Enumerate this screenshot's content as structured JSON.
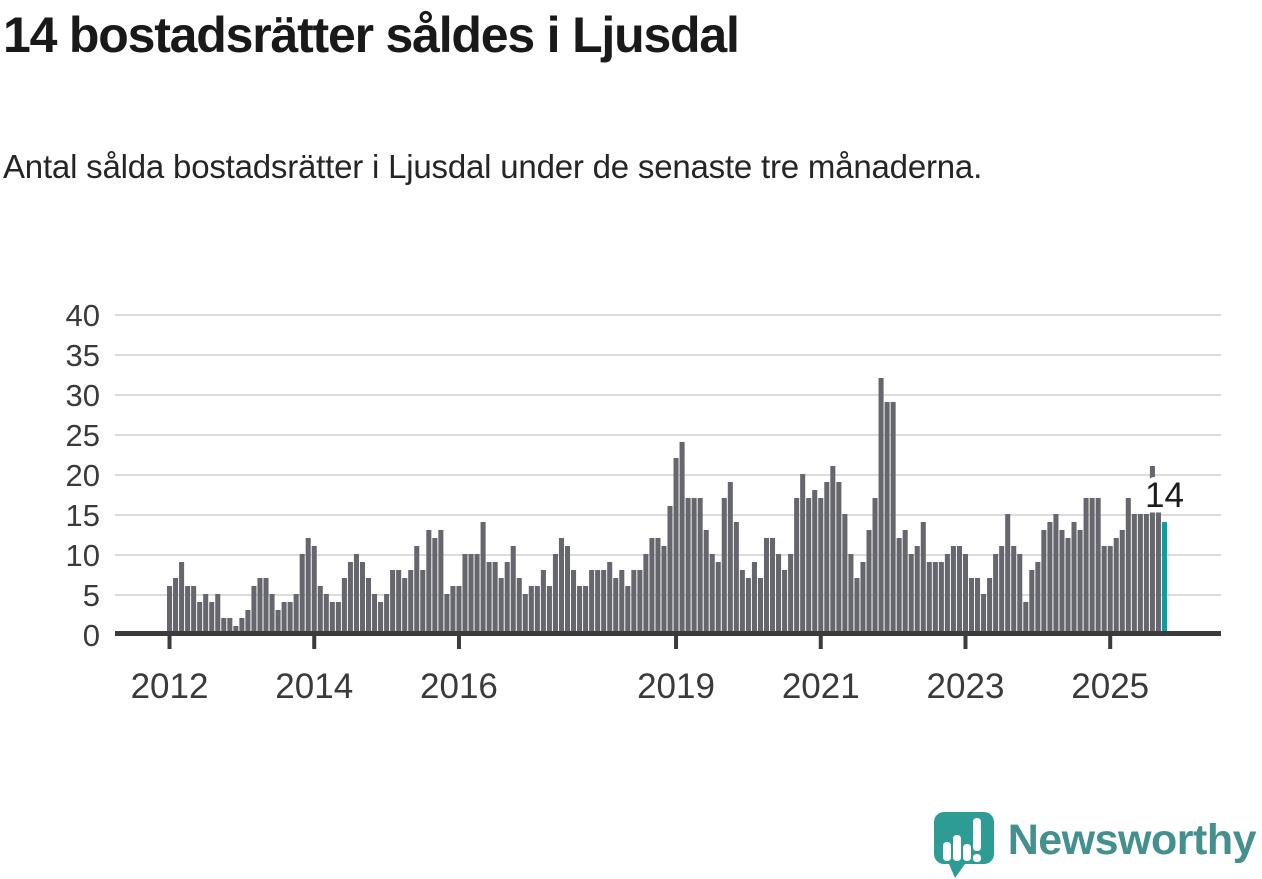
{
  "header": {
    "title": "14 bostadsrätter såldes i Ljusdal",
    "subtitle": "Antal sålda bostadsrätter i Ljusdal under de senaste tre månaderna."
  },
  "annotation": {
    "last_value_label": "14"
  },
  "logo": {
    "brand": "Newsworthy",
    "icon": "speech-bubble-bar-chart-icon"
  },
  "colors": {
    "background": "#ffffff",
    "bar": "#66666e",
    "highlight_bar": "#0aa0a0",
    "gridline": "#dcdcdc",
    "axis_line": "#3b3b3b",
    "axis_label": "#3a3a3a",
    "annotation_text": "#1c1c1c",
    "annotation_halo": "#ffffff",
    "logo_icon": "#2d9c94",
    "logo_text": "#43908e",
    "title_text": "#191919"
  },
  "chart_data": {
    "type": "bar",
    "title": "14 bostadsrätter såldes i Ljusdal",
    "xlabel": "",
    "ylabel": "",
    "x_start_month": "2012-01",
    "x_end_month": "2025-10",
    "values": [
      6,
      7,
      9,
      6,
      6,
      4,
      5,
      4,
      5,
      2,
      2,
      1,
      2,
      3,
      6,
      7,
      7,
      5,
      3,
      4,
      4,
      5,
      10,
      12,
      11,
      6,
      5,
      4,
      4,
      7,
      9,
      10,
      9,
      7,
      5,
      4,
      5,
      8,
      8,
      7,
      8,
      11,
      8,
      13,
      12,
      13,
      5,
      6,
      6,
      10,
      10,
      10,
      14,
      9,
      9,
      7,
      9,
      11,
      7,
      5,
      6,
      6,
      8,
      6,
      10,
      12,
      11,
      8,
      6,
      6,
      8,
      8,
      8,
      9,
      7,
      8,
      6,
      8,
      8,
      10,
      12,
      12,
      11,
      16,
      22,
      24,
      17,
      17,
      17,
      13,
      10,
      9,
      17,
      19,
      14,
      8,
      7,
      9,
      7,
      12,
      12,
      10,
      8,
      10,
      17,
      20,
      17,
      18,
      17,
      19,
      21,
      19,
      15,
      10,
      7,
      9,
      13,
      17,
      32,
      29,
      29,
      12,
      13,
      10,
      11,
      14,
      9,
      9,
      9,
      10,
      11,
      11,
      10,
      7,
      7,
      5,
      7,
      10,
      11,
      15,
      11,
      10,
      4,
      8,
      9,
      13,
      14,
      15,
      13,
      12,
      14,
      13,
      17,
      17,
      17,
      11,
      11,
      12,
      13,
      17,
      15,
      15,
      15,
      21,
      16,
      14
    ],
    "highlight_last_bar": true,
    "last_value": 14,
    "yticks": [
      0,
      5,
      10,
      15,
      20,
      25,
      30,
      35,
      40
    ],
    "ylim": [
      0,
      40
    ],
    "xticks": [
      2012,
      2014,
      2016,
      2019,
      2021,
      2023,
      2025
    ],
    "grid": "horizontal",
    "legend": "none"
  }
}
